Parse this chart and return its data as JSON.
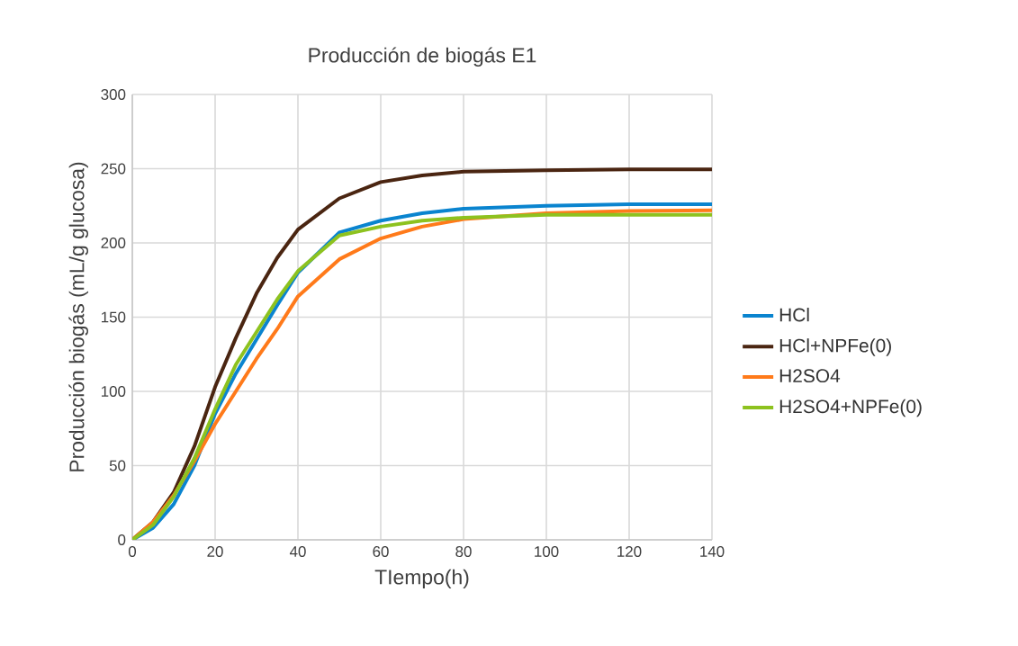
{
  "chart_data": {
    "type": "line",
    "title": "Producción de biogás E1",
    "xlabel": "TIempo(h)",
    "ylabel": "Producción biogás (mL/g glucosa)",
    "x": [
      0,
      5,
      10,
      15,
      20,
      25,
      30,
      35,
      40,
      50,
      60,
      70,
      80,
      100,
      120,
      140
    ],
    "series": [
      {
        "name": "HCl",
        "color": "#0a84cf",
        "values": [
          0,
          8,
          24,
          50,
          85,
          112,
          135,
          158,
          180,
          207,
          215,
          220,
          223,
          225,
          226,
          226
        ]
      },
      {
        "name": "HCl+NPFe(0)",
        "color": "#4a2511",
        "values": [
          0,
          12,
          32,
          63,
          103,
          136,
          166,
          190,
          209,
          230,
          241,
          245.5,
          248,
          249,
          249.5,
          249.5
        ]
      },
      {
        "name": "H2SO4",
        "color": "#ff7a1a",
        "values": [
          0,
          12,
          30,
          53,
          78,
          100,
          122,
          142,
          164,
          189,
          203,
          211,
          216,
          220,
          221.5,
          222
        ]
      },
      {
        "name": "H2SO4+NPFe(0)",
        "color": "#8dc21f",
        "values": [
          0,
          10,
          29,
          55,
          88,
          118,
          140,
          162,
          181,
          205,
          211,
          215,
          217,
          219,
          219,
          219
        ]
      }
    ],
    "xlim": [
      0,
      140
    ],
    "xticks": [
      0,
      20,
      40,
      60,
      80,
      100,
      120,
      140
    ],
    "ylim": [
      0,
      300
    ],
    "yticks": [
      0,
      50,
      100,
      150,
      200,
      250,
      300
    ],
    "grid": true,
    "legend": "right",
    "marker": "none",
    "line_style": "solid"
  }
}
